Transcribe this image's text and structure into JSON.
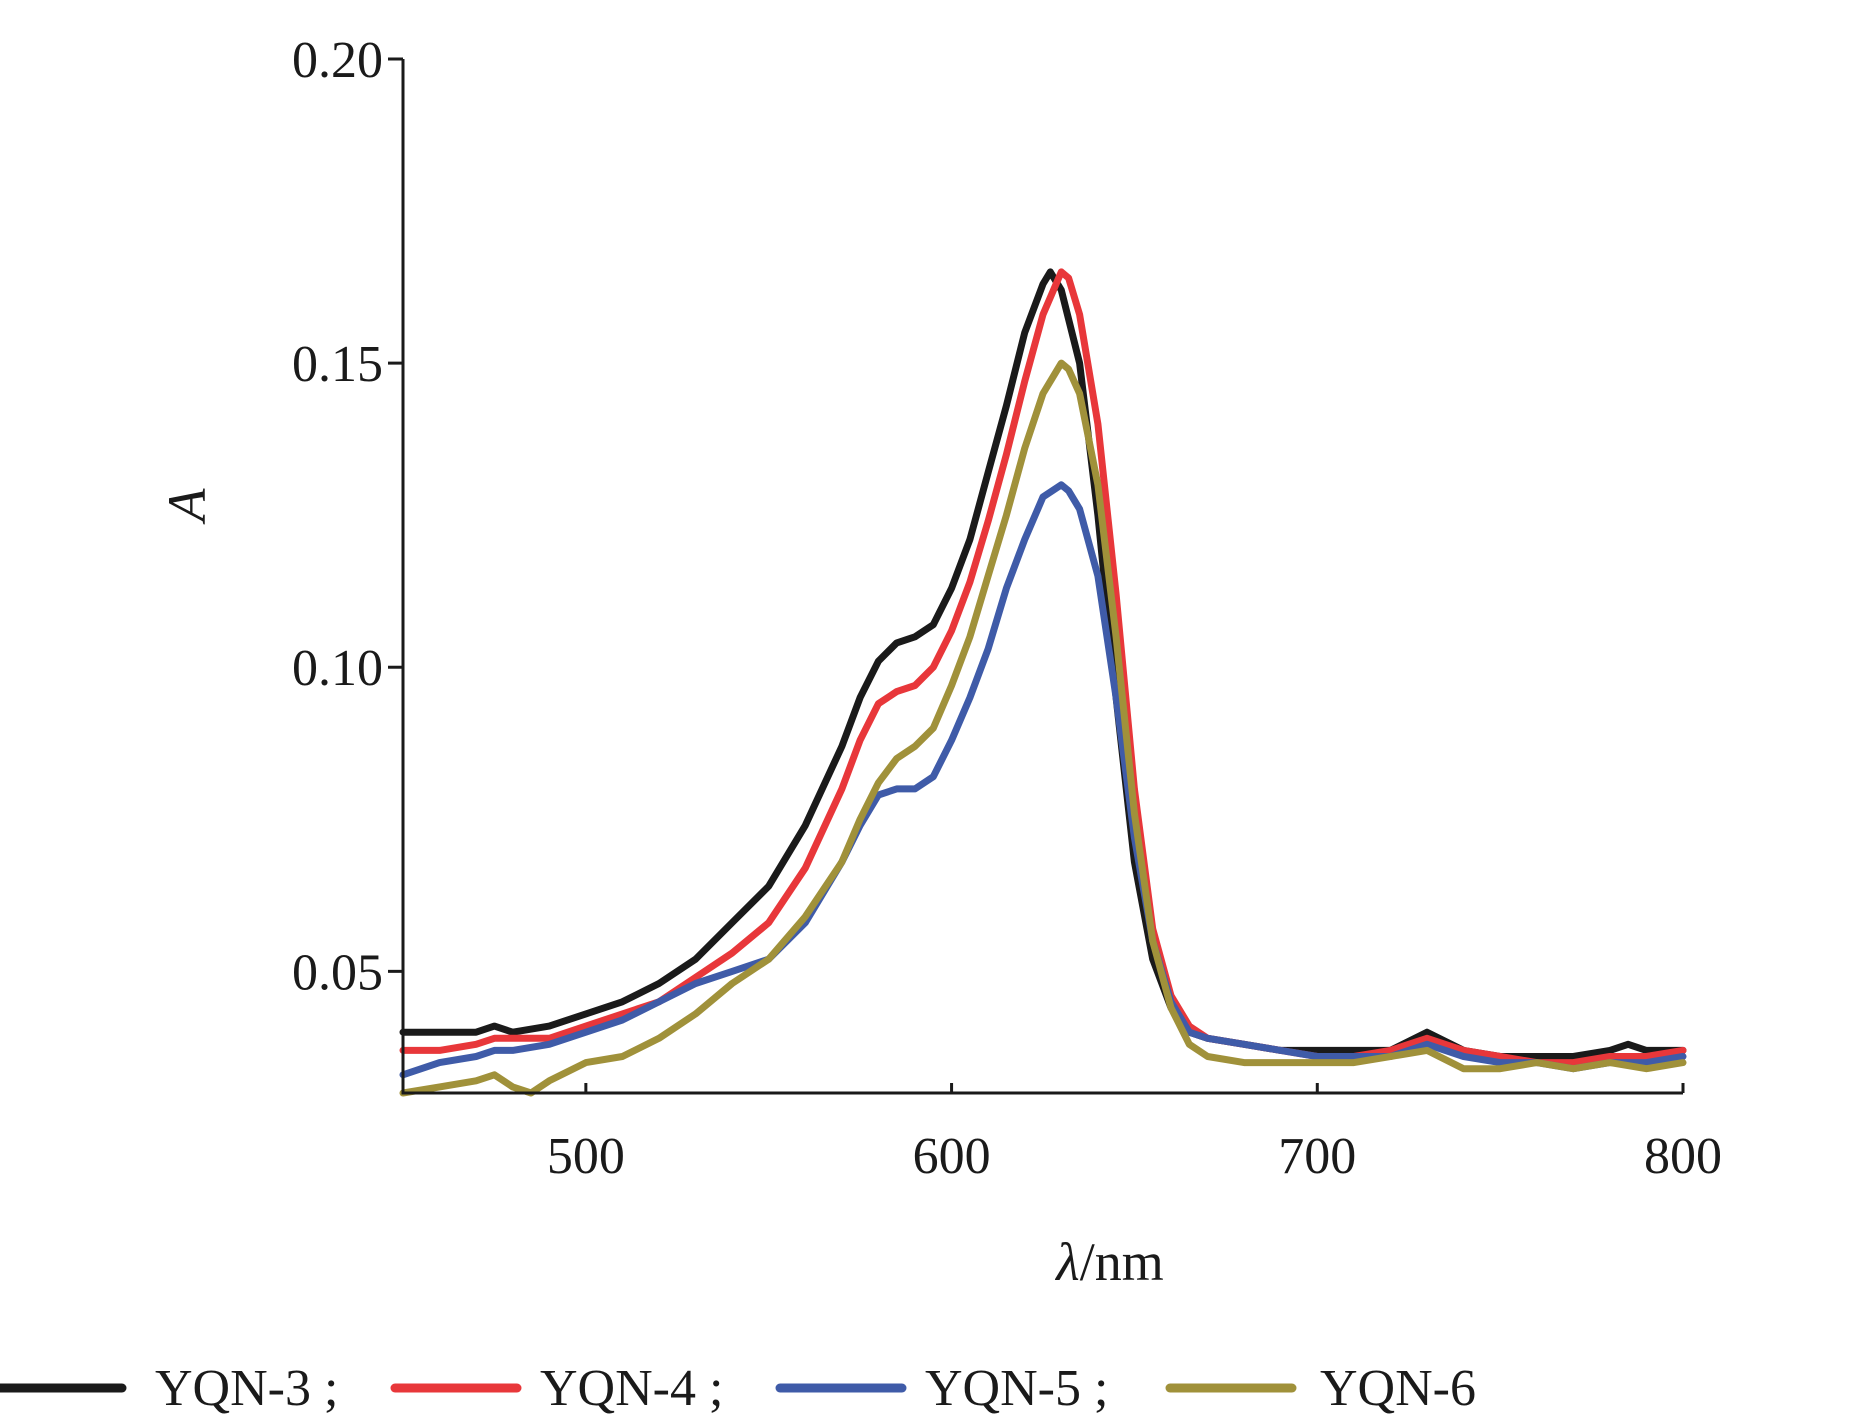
{
  "chart_data": {
    "type": "line",
    "title": "",
    "xlabel_symbol": "λ",
    "xlabel_unit": "/nm",
    "ylabel": "A",
    "xlim": [
      450,
      800
    ],
    "ylim": [
      0.03,
      0.2
    ],
    "x_ticks": [
      500,
      600,
      700,
      800
    ],
    "x_tick_labels": [
      "500",
      "600",
      "700",
      "800"
    ],
    "y_ticks": [
      0.05,
      0.1,
      0.15,
      0.2
    ],
    "y_tick_labels": [
      "0.05",
      "0.10",
      "0.15",
      "0.20"
    ],
    "legend_position": "bottom",
    "series": [
      {
        "name": "YQN-3",
        "legend_label": "YQN-3 ;",
        "color": "#1a1a1a",
        "x": [
          450,
          460,
          470,
          475,
          480,
          490,
          500,
          510,
          520,
          530,
          540,
          550,
          560,
          570,
          575,
          580,
          585,
          590,
          595,
          600,
          605,
          610,
          615,
          620,
          625,
          627,
          630,
          635,
          640,
          645,
          650,
          655,
          660,
          665,
          670,
          680,
          690,
          700,
          710,
          720,
          730,
          740,
          750,
          760,
          770,
          780,
          785,
          790,
          800
        ],
        "y": [
          0.04,
          0.04,
          0.04,
          0.041,
          0.04,
          0.041,
          0.043,
          0.045,
          0.048,
          0.052,
          0.058,
          0.064,
          0.074,
          0.087,
          0.095,
          0.101,
          0.104,
          0.105,
          0.107,
          0.113,
          0.121,
          0.132,
          0.143,
          0.155,
          0.163,
          0.165,
          0.162,
          0.15,
          0.125,
          0.095,
          0.068,
          0.052,
          0.044,
          0.04,
          0.039,
          0.038,
          0.037,
          0.037,
          0.037,
          0.037,
          0.04,
          0.037,
          0.036,
          0.036,
          0.036,
          0.037,
          0.038,
          0.037,
          0.037
        ]
      },
      {
        "name": "YQN-4",
        "legend_label": "YQN-4 ;",
        "color": "#e8373a",
        "x": [
          450,
          460,
          470,
          475,
          480,
          490,
          500,
          510,
          520,
          530,
          540,
          550,
          560,
          570,
          575,
          580,
          585,
          590,
          595,
          600,
          605,
          610,
          615,
          620,
          625,
          630,
          632,
          635,
          640,
          645,
          650,
          655,
          660,
          665,
          670,
          680,
          690,
          700,
          710,
          720,
          730,
          740,
          750,
          760,
          770,
          780,
          790,
          800
        ],
        "y": [
          0.037,
          0.037,
          0.038,
          0.039,
          0.039,
          0.039,
          0.041,
          0.043,
          0.045,
          0.049,
          0.053,
          0.058,
          0.067,
          0.08,
          0.088,
          0.094,
          0.096,
          0.097,
          0.1,
          0.106,
          0.114,
          0.124,
          0.135,
          0.147,
          0.158,
          0.165,
          0.164,
          0.158,
          0.14,
          0.112,
          0.08,
          0.057,
          0.046,
          0.041,
          0.039,
          0.038,
          0.037,
          0.036,
          0.036,
          0.037,
          0.039,
          0.037,
          0.036,
          0.035,
          0.035,
          0.036,
          0.036,
          0.037
        ]
      },
      {
        "name": "YQN-5",
        "legend_label": "YQN-5 ;",
        "color": "#3f5ba8",
        "x": [
          450,
          460,
          470,
          475,
          480,
          490,
          500,
          510,
          520,
          530,
          540,
          550,
          560,
          570,
          575,
          580,
          585,
          590,
          595,
          600,
          605,
          610,
          615,
          620,
          625,
          630,
          632,
          635,
          640,
          645,
          650,
          655,
          660,
          665,
          670,
          680,
          690,
          700,
          710,
          720,
          730,
          740,
          750,
          760,
          770,
          780,
          790,
          800
        ],
        "y": [
          0.033,
          0.035,
          0.036,
          0.037,
          0.037,
          0.038,
          0.04,
          0.042,
          0.045,
          0.048,
          0.05,
          0.052,
          0.058,
          0.068,
          0.074,
          0.079,
          0.08,
          0.08,
          0.082,
          0.088,
          0.095,
          0.103,
          0.113,
          0.121,
          0.128,
          0.13,
          0.129,
          0.126,
          0.115,
          0.095,
          0.072,
          0.055,
          0.045,
          0.04,
          0.039,
          0.038,
          0.037,
          0.036,
          0.036,
          0.036,
          0.038,
          0.036,
          0.035,
          0.035,
          0.034,
          0.035,
          0.035,
          0.036
        ]
      },
      {
        "name": "YQN-6",
        "legend_label": "YQN-6",
        "color": "#a0913a",
        "x": [
          450,
          460,
          470,
          475,
          480,
          485,
          490,
          500,
          510,
          520,
          530,
          540,
          550,
          560,
          570,
          575,
          580,
          585,
          590,
          595,
          600,
          605,
          610,
          615,
          620,
          625,
          630,
          632,
          635,
          640,
          645,
          650,
          655,
          660,
          665,
          670,
          680,
          690,
          700,
          710,
          720,
          730,
          740,
          750,
          760,
          770,
          780,
          790,
          800
        ],
        "y": [
          0.03,
          0.031,
          0.032,
          0.033,
          0.031,
          0.03,
          0.032,
          0.035,
          0.036,
          0.039,
          0.043,
          0.048,
          0.052,
          0.059,
          0.068,
          0.075,
          0.081,
          0.085,
          0.087,
          0.09,
          0.097,
          0.105,
          0.115,
          0.125,
          0.136,
          0.145,
          0.15,
          0.149,
          0.145,
          0.13,
          0.105,
          0.076,
          0.055,
          0.044,
          0.038,
          0.036,
          0.035,
          0.035,
          0.035,
          0.035,
          0.036,
          0.037,
          0.034,
          0.034,
          0.035,
          0.034,
          0.035,
          0.034,
          0.035
        ]
      }
    ]
  }
}
